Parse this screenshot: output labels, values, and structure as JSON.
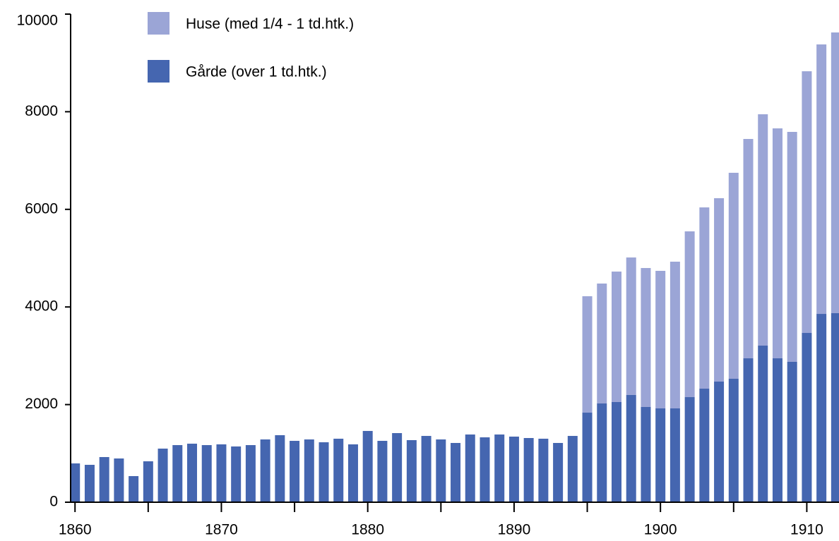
{
  "chart_data": {
    "type": "stacked_bar",
    "x": [
      1860,
      1861,
      1862,
      1863,
      1864,
      1865,
      1866,
      1867,
      1868,
      1869,
      1870,
      1871,
      1872,
      1873,
      1874,
      1875,
      1876,
      1877,
      1878,
      1879,
      1880,
      1881,
      1882,
      1883,
      1884,
      1885,
      1886,
      1887,
      1888,
      1889,
      1890,
      1891,
      1892,
      1893,
      1894,
      1895,
      1896,
      1897,
      1898,
      1899,
      1900,
      1901,
      1902,
      1903,
      1904,
      1905,
      1906,
      1907,
      1908,
      1909,
      1910,
      1911,
      1912
    ],
    "series": [
      {
        "name": "Gårde (over 1 td.htk.)",
        "color": "#4566b0",
        "values": [
          795,
          766,
          925,
          896,
          535,
          838,
          1098,
          1170,
          1199,
          1170,
          1185,
          1142,
          1170,
          1286,
          1373,
          1257,
          1286,
          1228,
          1301,
          1185,
          1460,
          1257,
          1416,
          1272,
          1358,
          1286,
          1214,
          1387,
          1329,
          1387,
          1344,
          1315,
          1301,
          1214,
          1358,
          1835,
          2023,
          2052,
          2197,
          1951,
          1922,
          1922,
          2153,
          2327,
          2471,
          2529,
          2948,
          3208,
          2948,
          2876,
          3468,
          3858,
          3873
        ]
      },
      {
        "name": "Huse (med 1/4 - 1 td.htk.)",
        "color": "#9ba5d6",
        "values": [
          null,
          null,
          null,
          null,
          null,
          null,
          null,
          null,
          null,
          null,
          null,
          null,
          null,
          null,
          null,
          null,
          null,
          null,
          null,
          null,
          null,
          null,
          null,
          null,
          null,
          null,
          null,
          null,
          null,
          null,
          null,
          null,
          null,
          null,
          null,
          2385,
          2457,
          2673,
          2817,
          2847,
          2818,
          3006,
          3396,
          3713,
          3757,
          4220,
          4494,
          4740,
          4711,
          4711,
          5361,
          5521,
          5751
        ]
      }
    ],
    "xlim": [
      1859.7,
      1912.2
    ],
    "xticks": [
      1860,
      1870,
      1880,
      1890,
      1900,
      1910
    ],
    "xminor_ticks": [
      1865,
      1875,
      1885,
      1895,
      1905
    ],
    "ylim": [
      0,
      10000
    ],
    "yticks": [
      0,
      2000,
      4000,
      6000,
      8000,
      10000
    ],
    "legend": "top-left"
  }
}
